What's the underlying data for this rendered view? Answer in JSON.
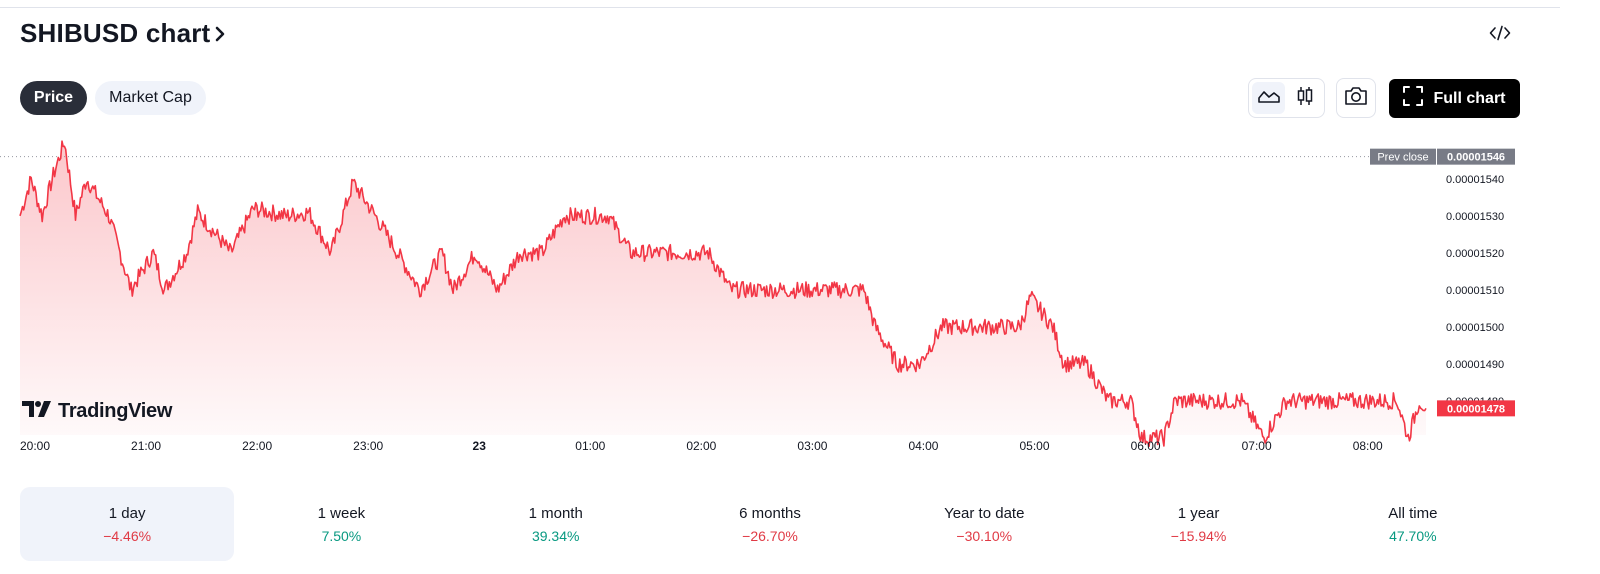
{
  "header": {
    "title": "SHIBUSD chart",
    "chevron_icon": "chevron-right-icon",
    "embed_icon": "code-embed-icon"
  },
  "tabs": [
    {
      "label": "Price",
      "active": true
    },
    {
      "label": "Market Cap",
      "active": false
    }
  ],
  "toolbar": {
    "area_style_icon": "area-chart-icon",
    "candle_style_icon": "candlestick-icon",
    "snapshot_icon": "camera-icon",
    "full_chart_label": "Full chart",
    "full_chart_icon": "fullscreen-icon"
  },
  "logo": {
    "text": "TradingView"
  },
  "chart_data": {
    "type": "area",
    "ylim": [
      1.4708e-05,
      1.5505e-05
    ],
    "y_ticks": [
      "0.00001540",
      "0.00001530",
      "0.00001520",
      "0.00001510",
      "0.00001500",
      "0.00001490",
      "0.00001480"
    ],
    "y_tick_values": [
      1.54e-05,
      1.53e-05,
      1.52e-05,
      1.51e-05,
      1.5e-05,
      1.49e-05,
      1.48e-05
    ],
    "x_ticks": [
      "20:00",
      "21:00",
      "22:00",
      "23:00",
      "23",
      "01:00",
      "02:00",
      "03:00",
      "04:00",
      "05:00",
      "06:00",
      "07:00",
      "08:00"
    ],
    "x_tick_bold": [
      false,
      false,
      false,
      false,
      true,
      false,
      false,
      false,
      false,
      false,
      false,
      false,
      false
    ],
    "xlim_hours": [
      0,
      12.75
    ],
    "prev_close": {
      "label": "Prev close",
      "value": "0.00001546",
      "num": 1.546e-05
    },
    "last": {
      "value": "0.00001478",
      "num": 1.478e-05
    },
    "line_color": "#f23645",
    "series": [
      {
        "values": [
          [
            0.0,
            1.53e-05
          ],
          [
            0.1,
            1.54e-05
          ],
          [
            0.2,
            1.53e-05
          ],
          [
            0.3,
            1.541e-05
          ],
          [
            0.4,
            1.55e-05
          ],
          [
            0.5,
            1.53e-05
          ],
          [
            0.6,
            1.54e-05
          ],
          [
            0.8,
            1.53e-05
          ],
          [
            1.0,
            1.51e-05
          ],
          [
            1.2,
            1.52e-05
          ],
          [
            1.3,
            1.51e-05
          ],
          [
            1.5,
            1.52e-05
          ],
          [
            1.6,
            1.531e-05
          ],
          [
            1.9,
            1.52e-05
          ],
          [
            2.1,
            1.532e-05
          ],
          [
            2.4,
            1.53e-05
          ],
          [
            2.6,
            1.531e-05
          ],
          [
            2.8,
            1.52e-05
          ],
          [
            3.0,
            1.539e-05
          ],
          [
            3.2,
            1.53e-05
          ],
          [
            3.4,
            1.52e-05
          ],
          [
            3.6,
            1.51e-05
          ],
          [
            3.8,
            1.52e-05
          ],
          [
            3.9,
            1.51e-05
          ],
          [
            4.1,
            1.52e-05
          ],
          [
            4.3,
            1.51e-05
          ],
          [
            4.5,
            1.52e-05
          ],
          [
            4.7,
            1.52e-05
          ],
          [
            4.9,
            1.53e-05
          ],
          [
            5.1,
            1.53e-05
          ],
          [
            5.3,
            1.53e-05
          ],
          [
            5.5,
            1.52e-05
          ],
          [
            5.7,
            1.52e-05
          ],
          [
            6.0,
            1.52e-05
          ],
          [
            6.2,
            1.52e-05
          ],
          [
            6.4,
            1.51e-05
          ],
          [
            6.5,
            1.51e-05
          ],
          [
            6.8,
            1.51e-05
          ],
          [
            7.0,
            1.51e-05
          ],
          [
            7.2,
            1.51e-05
          ],
          [
            7.4,
            1.51e-05
          ],
          [
            7.6,
            1.51e-05
          ],
          [
            7.7,
            1.5e-05
          ],
          [
            7.9,
            1.49e-05
          ],
          [
            8.1,
            1.49e-05
          ],
          [
            8.3,
            1.5e-05
          ],
          [
            8.4,
            1.5e-05
          ],
          [
            8.6,
            1.5e-05
          ],
          [
            8.8,
            1.5e-05
          ],
          [
            9.0,
            1.5e-05
          ],
          [
            9.1,
            1.508e-05
          ],
          [
            9.3,
            1.5e-05
          ],
          [
            9.4,
            1.49e-05
          ],
          [
            9.6,
            1.49e-05
          ],
          [
            9.8,
            1.48e-05
          ],
          [
            10.0,
            1.48e-05
          ],
          [
            10.1,
            1.47e-05
          ],
          [
            10.3,
            1.47e-05
          ],
          [
            10.4,
            1.48e-05
          ],
          [
            10.6,
            1.48e-05
          ],
          [
            10.8,
            1.48e-05
          ],
          [
            11.0,
            1.48e-05
          ],
          [
            11.2,
            1.47e-05
          ],
          [
            11.4,
            1.48e-05
          ],
          [
            11.6,
            1.48e-05
          ],
          [
            11.8,
            1.48e-05
          ],
          [
            12.0,
            1.48e-05
          ],
          [
            12.2,
            1.48e-05
          ],
          [
            12.4,
            1.48e-05
          ],
          [
            12.5,
            1.47e-05
          ],
          [
            12.6,
            1.48e-05
          ],
          [
            12.66,
            1.478e-05
          ]
        ]
      }
    ]
  },
  "periods": [
    {
      "label": "1 day",
      "value": "−4.46%",
      "trend": "negative",
      "active": true
    },
    {
      "label": "1 week",
      "value": "7.50%",
      "trend": "positive",
      "active": false
    },
    {
      "label": "1 month",
      "value": "39.34%",
      "trend": "positive",
      "active": false
    },
    {
      "label": "6 months",
      "value": "−26.70%",
      "trend": "negative",
      "active": false
    },
    {
      "label": "Year to date",
      "value": "−30.10%",
      "trend": "negative",
      "active": false
    },
    {
      "label": "1 year",
      "value": "−15.94%",
      "trend": "negative",
      "active": false
    },
    {
      "label": "All time",
      "value": "47.70%",
      "trend": "positive",
      "active": false
    }
  ]
}
